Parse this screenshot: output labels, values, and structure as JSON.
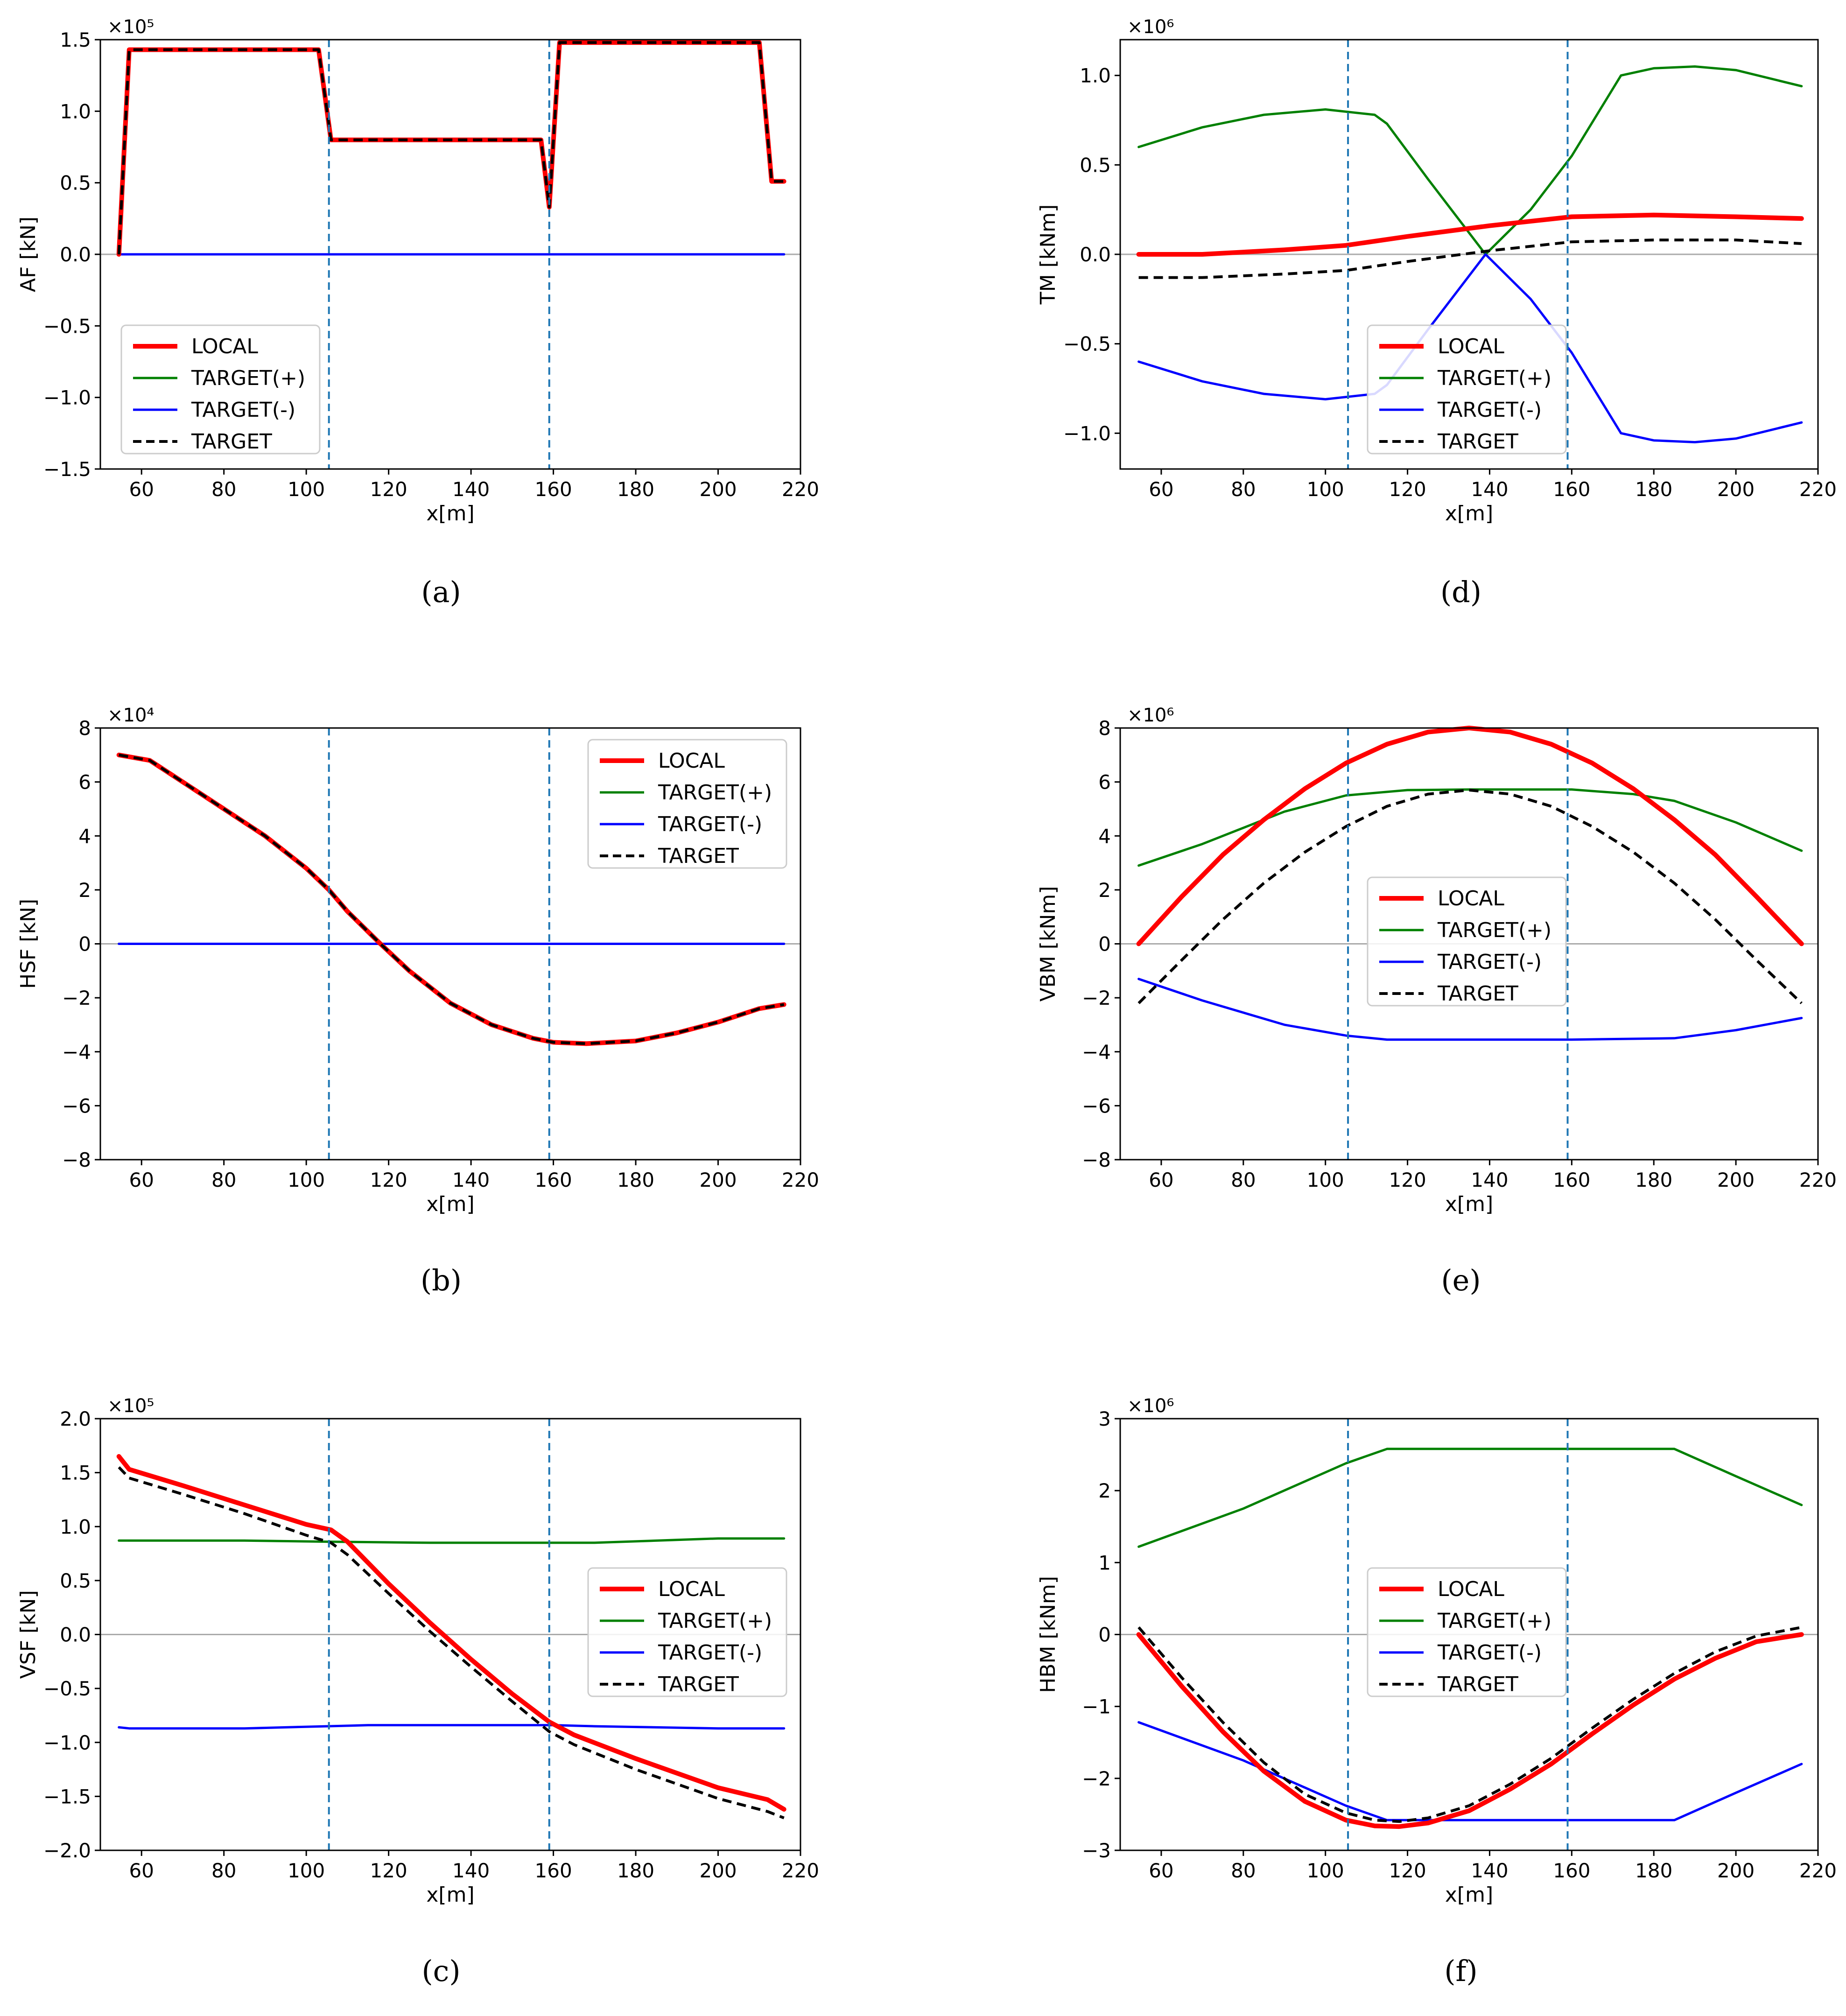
{
  "colors": {
    "local": "#ff0000",
    "target_pos": "#008000",
    "target_neg": "#0000ff",
    "target": "#000000",
    "section_line": "#1f77b4",
    "zero_line": "#aaaaaa"
  },
  "legend_labels": [
    "LOCAL",
    "TARGET(+)",
    "TARGET(-)",
    "TARGET"
  ],
  "chart_data": [
    {
      "id": "a",
      "caption": "(a)",
      "type": "line",
      "ylabel": "AF [kN]",
      "xlabel": "x[m]",
      "multiplier": "×10⁵",
      "xlim": [
        50,
        220
      ],
      "ylim": [
        -1.5,
        1.5
      ],
      "xticks": [
        60,
        80,
        100,
        120,
        140,
        160,
        180,
        200,
        220
      ],
      "xtick_labels": [
        "60",
        "80",
        "100",
        "120",
        "140",
        "160",
        "180",
        "200",
        "220"
      ],
      "yticks": [
        -1.5,
        -1.0,
        -0.5,
        0.0,
        0.5,
        1.0,
        1.5
      ],
      "ytick_labels": [
        "−1.5",
        "−1.0",
        "−0.5",
        "0.0",
        "0.5",
        "1.0",
        "1.5"
      ],
      "vlines": [
        105.5,
        159
      ],
      "legend": "lower-left",
      "series": [
        {
          "name": "LOCAL",
          "x": [
            54.5,
            57,
            103,
            106,
            157,
            159,
            161.5,
            210,
            213,
            216
          ],
          "y": [
            0,
            1.43,
            1.43,
            0.8,
            0.8,
            0.33,
            1.48,
            1.48,
            0.51,
            0.51
          ]
        },
        {
          "name": "TARGET(+)",
          "x": [
            54.5,
            216
          ],
          "y": [
            0,
            0
          ]
        },
        {
          "name": "TARGET(-)",
          "x": [
            54.5,
            216
          ],
          "y": [
            0,
            0
          ]
        },
        {
          "name": "TARGET",
          "x": [
            54.5,
            57,
            103,
            106,
            157,
            159,
            161.5,
            210,
            213,
            216
          ],
          "y": [
            0,
            1.43,
            1.43,
            0.8,
            0.8,
            0.33,
            1.48,
            1.48,
            0.51,
            0.51
          ]
        }
      ]
    },
    {
      "id": "d",
      "caption": "(d)",
      "type": "line",
      "ylabel": "TM [kNm]",
      "xlabel": "x[m]",
      "multiplier": "×10⁶",
      "xlim": [
        50,
        220
      ],
      "ylim": [
        -1.2,
        1.2
      ],
      "xticks": [
        60,
        80,
        100,
        120,
        140,
        160,
        180,
        200,
        220
      ],
      "xtick_labels": [
        "60",
        "80",
        "100",
        "120",
        "140",
        "160",
        "180",
        "200",
        "220"
      ],
      "yticks": [
        -1.0,
        -0.5,
        0.0,
        0.5,
        1.0
      ],
      "ytick_labels": [
        "−1.0",
        "−0.5",
        "0.0",
        "0.5",
        "1.0"
      ],
      "vlines": [
        105.5,
        159
      ],
      "legend": "center-lower",
      "series": [
        {
          "name": "LOCAL",
          "x": [
            54.5,
            70,
            90,
            105,
            120,
            140,
            160,
            180,
            200,
            216
          ],
          "y": [
            0.0,
            0.0,
            0.025,
            0.05,
            0.1,
            0.16,
            0.21,
            0.22,
            0.21,
            0.2
          ]
        },
        {
          "name": "TARGET(+)",
          "x": [
            54.5,
            70,
            85,
            100,
            112,
            115,
            125,
            139,
            150,
            160,
            172,
            180,
            190,
            200,
            216
          ],
          "y": [
            0.6,
            0.71,
            0.78,
            0.81,
            0.78,
            0.73,
            0.42,
            0.0,
            0.25,
            0.55,
            1.0,
            1.04,
            1.05,
            1.03,
            0.94
          ]
        },
        {
          "name": "TARGET(-)",
          "x": [
            54.5,
            70,
            85,
            100,
            112,
            115,
            125,
            139,
            150,
            160,
            172,
            180,
            190,
            200,
            216
          ],
          "y": [
            -0.6,
            -0.71,
            -0.78,
            -0.81,
            -0.78,
            -0.73,
            -0.42,
            0.0,
            -0.25,
            -0.55,
            -1.0,
            -1.04,
            -1.05,
            -1.03,
            -0.94
          ]
        },
        {
          "name": "TARGET",
          "x": [
            54.5,
            70,
            90,
            105,
            120,
            140,
            160,
            180,
            200,
            216
          ],
          "y": [
            -0.13,
            -0.13,
            -0.11,
            -0.09,
            -0.04,
            0.02,
            0.07,
            0.08,
            0.08,
            0.06
          ]
        }
      ]
    },
    {
      "id": "b",
      "caption": "(b)",
      "type": "line",
      "ylabel": "HSF [kN]",
      "xlabel": "x[m]",
      "multiplier": "×10⁴",
      "xlim": [
        50,
        220
      ],
      "ylim": [
        -8,
        8
      ],
      "xticks": [
        60,
        80,
        100,
        120,
        140,
        160,
        180,
        200,
        220
      ],
      "xtick_labels": [
        "60",
        "80",
        "100",
        "120",
        "140",
        "160",
        "180",
        "200",
        "220"
      ],
      "yticks": [
        -8,
        -6,
        -4,
        -2,
        0,
        2,
        4,
        6,
        8
      ],
      "ytick_labels": [
        "−8",
        "−6",
        "−4",
        "−2",
        "0",
        "2",
        "4",
        "6",
        "8"
      ],
      "vlines": [
        105.5,
        159
      ],
      "legend": "upper-right",
      "series": [
        {
          "name": "LOCAL",
          "x": [
            54.5,
            62,
            70,
            80,
            90,
            100,
            105.5,
            110,
            118,
            125,
            135,
            145,
            155,
            160,
            168,
            180,
            190,
            200,
            210,
            216
          ],
          "y": [
            7.0,
            6.8,
            6.0,
            5.0,
            4.0,
            2.8,
            2.0,
            1.2,
            0.0,
            -1.0,
            -2.2,
            -3.0,
            -3.5,
            -3.65,
            -3.7,
            -3.6,
            -3.3,
            -2.9,
            -2.4,
            -2.25
          ]
        },
        {
          "name": "TARGET(+)",
          "x": [
            54.5,
            216
          ],
          "y": [
            0,
            0
          ]
        },
        {
          "name": "TARGET(-)",
          "x": [
            54.5,
            216
          ],
          "y": [
            0,
            0
          ]
        },
        {
          "name": "TARGET",
          "x": [
            54.5,
            62,
            70,
            80,
            90,
            100,
            105.5,
            110,
            118,
            125,
            135,
            145,
            155,
            160,
            168,
            180,
            190,
            200,
            210,
            216
          ],
          "y": [
            7.0,
            6.8,
            6.0,
            5.0,
            4.0,
            2.8,
            2.0,
            1.2,
            0.0,
            -1.0,
            -2.2,
            -3.0,
            -3.5,
            -3.65,
            -3.7,
            -3.6,
            -3.3,
            -2.9,
            -2.4,
            -2.25
          ]
        }
      ]
    },
    {
      "id": "e",
      "caption": "(e)",
      "type": "line",
      "ylabel": "VBM [kNm]",
      "xlabel": "x[m]",
      "multiplier": "×10⁶",
      "xlim": [
        50,
        220
      ],
      "ylim": [
        -8,
        8
      ],
      "xticks": [
        60,
        80,
        100,
        120,
        140,
        160,
        180,
        200,
        220
      ],
      "xtick_labels": [
        "60",
        "80",
        "100",
        "120",
        "140",
        "160",
        "180",
        "200",
        "220"
      ],
      "yticks": [
        -8,
        -6,
        -4,
        -2,
        0,
        2,
        4,
        6,
        8
      ],
      "ytick_labels": [
        "−8",
        "−6",
        "−4",
        "−2",
        "0",
        "2",
        "4",
        "6",
        "8"
      ],
      "vlines": [
        105.5,
        159
      ],
      "legend": "center",
      "series": [
        {
          "name": "LOCAL",
          "x": [
            54.5,
            65,
            75,
            85,
            95,
            105,
            115,
            125,
            135,
            145,
            155,
            165,
            175,
            185,
            195,
            205,
            216
          ],
          "y": [
            0.0,
            1.75,
            3.3,
            4.6,
            5.75,
            6.7,
            7.4,
            7.85,
            8.0,
            7.85,
            7.4,
            6.7,
            5.75,
            4.6,
            3.3,
            1.75,
            0.0
          ]
        },
        {
          "name": "TARGET(+)",
          "x": [
            54.5,
            70,
            90,
            105,
            120,
            135,
            160,
            175,
            185,
            200,
            216
          ],
          "y": [
            2.9,
            3.7,
            4.9,
            5.5,
            5.7,
            5.72,
            5.72,
            5.55,
            5.3,
            4.5,
            3.45
          ]
        },
        {
          "name": "TARGET(-)",
          "x": [
            54.5,
            70,
            90,
            105,
            115,
            135,
            160,
            185,
            200,
            216
          ],
          "y": [
            -1.3,
            -2.1,
            -3.0,
            -3.4,
            -3.55,
            -3.55,
            -3.55,
            -3.5,
            -3.2,
            -2.75
          ]
        },
        {
          "name": "TARGET",
          "x": [
            54.5,
            65,
            75,
            85,
            95,
            105,
            115,
            125,
            135,
            145,
            155,
            165,
            175,
            185,
            195,
            205,
            216
          ],
          "y": [
            -2.2,
            -0.6,
            0.9,
            2.25,
            3.4,
            4.35,
            5.1,
            5.55,
            5.7,
            5.55,
            5.1,
            4.35,
            3.4,
            2.25,
            0.9,
            -0.6,
            -2.2
          ]
        }
      ]
    },
    {
      "id": "c",
      "caption": "(c)",
      "type": "line",
      "ylabel": "VSF [kN]",
      "xlabel": "x[m]",
      "multiplier": "×10⁵",
      "xlim": [
        50,
        220
      ],
      "ylim": [
        -2.0,
        2.0
      ],
      "xticks": [
        60,
        80,
        100,
        120,
        140,
        160,
        180,
        200,
        220
      ],
      "xtick_labels": [
        "60",
        "80",
        "100",
        "120",
        "140",
        "160",
        "180",
        "200",
        "220"
      ],
      "yticks": [
        -2.0,
        -1.5,
        -1.0,
        -0.5,
        0.0,
        0.5,
        1.0,
        1.5,
        2.0
      ],
      "ytick_labels": [
        "−2.0",
        "−1.5",
        "−1.0",
        "−0.5",
        "0.0",
        "0.5",
        "1.0",
        "1.5",
        "2.0"
      ],
      "vlines": [
        105.5,
        159
      ],
      "legend": "center-right",
      "series": [
        {
          "name": "LOCAL",
          "x": [
            54.5,
            57,
            70,
            85,
            100,
            106,
            110,
            120,
            130,
            140,
            150,
            159,
            165,
            180,
            200,
            212,
            216
          ],
          "y": [
            1.65,
            1.53,
            1.38,
            1.2,
            1.02,
            0.97,
            0.86,
            0.47,
            0.11,
            -0.23,
            -0.55,
            -0.81,
            -0.93,
            -1.15,
            -1.42,
            -1.53,
            -1.62
          ]
        },
        {
          "name": "TARGET(+)",
          "x": [
            54.5,
            85,
            105,
            130,
            170,
            200,
            216
          ],
          "y": [
            0.87,
            0.87,
            0.86,
            0.85,
            0.85,
            0.89,
            0.89
          ]
        },
        {
          "name": "TARGET(-)",
          "x": [
            54.5,
            57,
            85,
            105,
            115,
            130,
            160,
            170,
            200,
            216
          ],
          "y": [
            -0.86,
            -0.87,
            -0.87,
            -0.85,
            -0.84,
            -0.84,
            -0.84,
            -0.85,
            -0.87,
            -0.87
          ]
        },
        {
          "name": "TARGET",
          "x": [
            54.5,
            57,
            70,
            85,
            100,
            106,
            110,
            120,
            130,
            140,
            150,
            159,
            165,
            180,
            200,
            212,
            216
          ],
          "y": [
            1.55,
            1.45,
            1.3,
            1.12,
            0.92,
            0.85,
            0.74,
            0.38,
            0.03,
            -0.3,
            -0.62,
            -0.9,
            -1.02,
            -1.25,
            -1.52,
            -1.64,
            -1.7
          ]
        }
      ]
    },
    {
      "id": "f",
      "caption": "(f)",
      "type": "line",
      "ylabel": "HBM [kNm]",
      "xlabel": "x[m]",
      "multiplier": "×10⁶",
      "xlim": [
        50,
        220
      ],
      "ylim": [
        -3,
        3
      ],
      "xticks": [
        60,
        80,
        100,
        120,
        140,
        160,
        180,
        200,
        220
      ],
      "xtick_labels": [
        "60",
        "80",
        "100",
        "120",
        "140",
        "160",
        "180",
        "200",
        "220"
      ],
      "yticks": [
        -3,
        -2,
        -1,
        0,
        1,
        2,
        3
      ],
      "ytick_labels": [
        "−3",
        "−2",
        "−1",
        "0",
        "1",
        "2",
        "3"
      ],
      "vlines": [
        105.5,
        159
      ],
      "legend": "center",
      "series": [
        {
          "name": "LOCAL",
          "x": [
            54.5,
            65,
            75,
            85,
            95,
            105,
            112,
            118,
            125,
            135,
            145,
            155,
            165,
            175,
            185,
            195,
            205,
            216
          ],
          "y": [
            0.0,
            -0.72,
            -1.35,
            -1.9,
            -2.32,
            -2.58,
            -2.66,
            -2.67,
            -2.62,
            -2.45,
            -2.15,
            -1.8,
            -1.38,
            -0.98,
            -0.62,
            -0.33,
            -0.1,
            0.0
          ]
        },
        {
          "name": "TARGET(+)",
          "x": [
            54.5,
            80,
            105,
            115,
            150,
            185,
            200,
            216
          ],
          "y": [
            1.22,
            1.75,
            2.38,
            2.58,
            2.58,
            2.58,
            2.2,
            1.8
          ]
        },
        {
          "name": "TARGET(-)",
          "x": [
            54.5,
            80,
            105,
            115,
            150,
            185,
            200,
            216
          ],
          "y": [
            -1.22,
            -1.75,
            -2.38,
            -2.58,
            -2.58,
            -2.58,
            -2.2,
            -1.8
          ]
        },
        {
          "name": "TARGET",
          "x": [
            54.5,
            65,
            75,
            85,
            95,
            105,
            112,
            118,
            125,
            135,
            145,
            155,
            165,
            175,
            185,
            195,
            205,
            216
          ],
          "y": [
            0.1,
            -0.6,
            -1.22,
            -1.78,
            -2.22,
            -2.48,
            -2.58,
            -2.6,
            -2.55,
            -2.38,
            -2.08,
            -1.72,
            -1.3,
            -0.9,
            -0.54,
            -0.24,
            -0.02,
            0.1
          ]
        }
      ]
    }
  ]
}
